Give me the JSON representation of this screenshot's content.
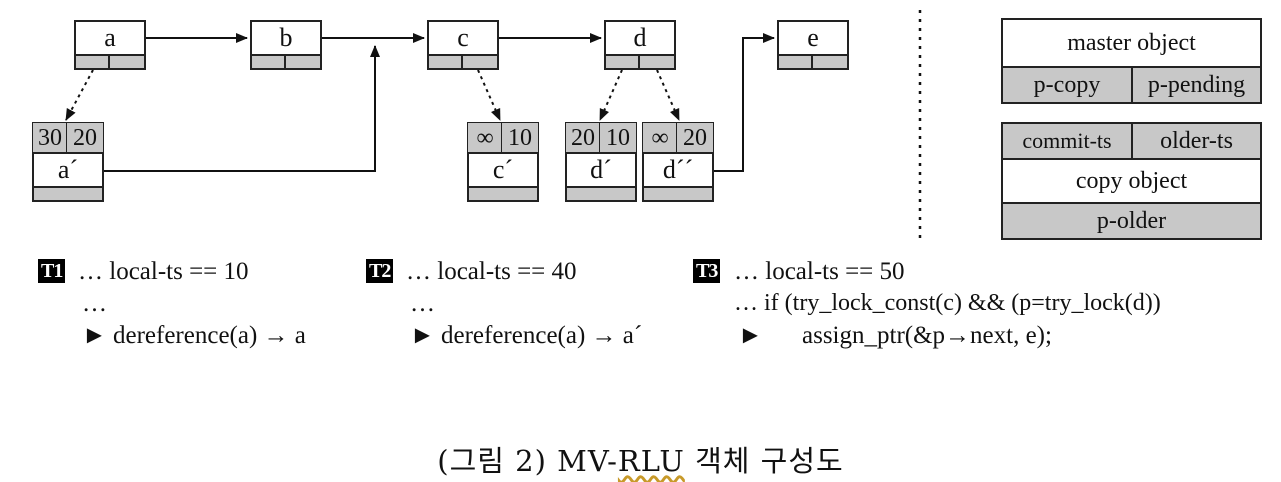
{
  "nodes": {
    "a": "a",
    "b": "b",
    "c": "c",
    "d": "d",
    "e": "e",
    "a_copy": "a´",
    "c_copy": "c´",
    "d_copy": "d´",
    "d_copy2": "d´´"
  },
  "timestamps": {
    "a_copy": [
      "30",
      "20"
    ],
    "c_copy": [
      "∞",
      "10"
    ],
    "d_copy": [
      "20",
      "10"
    ],
    "d_copy2": [
      "∞",
      "20"
    ]
  },
  "legend": {
    "master_object": "master object",
    "p_copy": "p-copy",
    "p_pending": "p-pending",
    "commit_ts": "commit-ts",
    "older_ts": "older-ts",
    "copy_object": "copy object",
    "p_older": "p-older"
  },
  "threads": {
    "t1": {
      "tag": "T1",
      "line1": "… local-ts == 10",
      "line2": "…",
      "line3": "► dereference(a) → a"
    },
    "t2": {
      "tag": "T2",
      "line1": "… local-ts == 40",
      "line2": "…",
      "line3": "► dereference(a) → a´"
    },
    "t3": {
      "tag": "T3",
      "line1": "… local-ts == 50",
      "line2": "… if (try_lock_const(c) && (p=try_lock(d))",
      "line3_arrow": "►",
      "line3": "assign_ptr(&p→next, e);"
    }
  },
  "caption": {
    "prefix": "(그림 2) MV-",
    "underlined": "RLU",
    "suffix": " 객체 구성도"
  }
}
